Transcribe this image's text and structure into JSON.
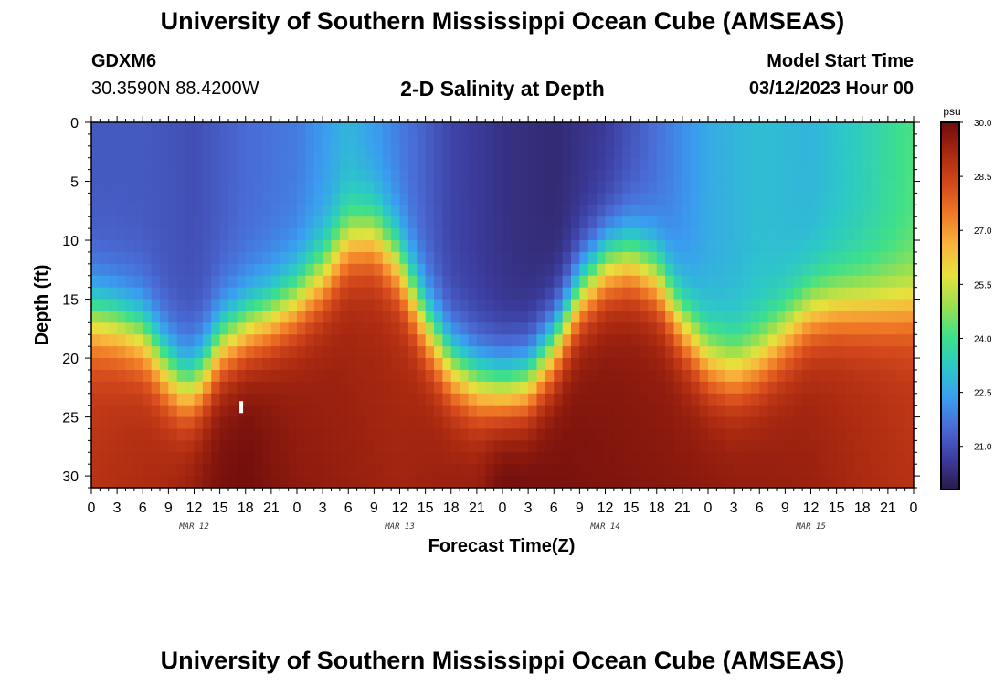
{
  "header": {
    "title": "University of Southern Mississippi Ocean Cube (AMSEAS)",
    "station": "GDXM6",
    "coords": "30.3590N  88.4200W",
    "plot_title": "2-D Salinity at Depth",
    "model_start_label": "Model Start Time",
    "model_start_value": "03/12/2023 Hour 00"
  },
  "footer": {
    "title": "University of Southern Mississippi Ocean Cube (AMSEAS)"
  },
  "colors": {
    "colormap": [
      "#2a1a4a",
      "#3c3c9e",
      "#4a6ad4",
      "#3a9ef0",
      "#2cc8c8",
      "#3ee08a",
      "#9ae050",
      "#e6e23c",
      "#f8b43c",
      "#f07a26",
      "#d4481c",
      "#a82810",
      "#6e0c0c"
    ]
  },
  "chart_data": {
    "type": "heatmap",
    "variable": "salinity",
    "units": "psu",
    "xlabel": "Forecast Time(Z)",
    "ylabel": "Depth (ft)",
    "x_range_hours": [
      0,
      96
    ],
    "ylim": [
      0,
      31
    ],
    "y_inverted": true,
    "x_tick_labels": [
      "0",
      "3",
      "6",
      "9",
      "12",
      "15",
      "18",
      "21",
      "0",
      "3",
      "6",
      "9",
      "12",
      "15",
      "18",
      "21",
      "0",
      "3",
      "6",
      "9",
      "12",
      "15",
      "18",
      "21",
      "0",
      "3",
      "6",
      "9",
      "12",
      "15",
      "18",
      "21",
      "0"
    ],
    "y_ticks": [
      0,
      5,
      10,
      15,
      20,
      25,
      30
    ],
    "date_labels": [
      {
        "hour": 12,
        "label": "MAR 12"
      },
      {
        "hour": 36,
        "label": "MAR 13"
      },
      {
        "hour": 60,
        "label": "MAR 14"
      },
      {
        "hour": 84,
        "label": "MAR 15"
      }
    ],
    "colorbar": {
      "label": "psu",
      "range": [
        19.8,
        30.0
      ],
      "tick_labels": [
        "30.0",
        "28.5",
        "27.0",
        "25.5",
        "24.0",
        "22.5",
        "21.0"
      ]
    },
    "halocline_depth_ft": {
      "hours": [
        0,
        3,
        6,
        9,
        11,
        13,
        15,
        18,
        21,
        24,
        27,
        30,
        33,
        36,
        39,
        42,
        45,
        48,
        51,
        54,
        57,
        60,
        63,
        66,
        69,
        72,
        75,
        78,
        81,
        84,
        87,
        90,
        93,
        96
      ],
      "values": [
        16.5,
        17,
        18,
        21,
        22.5,
        21.5,
        19,
        17.5,
        16.5,
        15,
        13,
        10,
        9.5,
        12,
        17,
        20.5,
        22,
        22.5,
        22,
        19,
        14.5,
        12,
        11.5,
        13,
        17,
        20,
        21,
        20,
        18,
        16,
        15.5,
        15.5,
        15.5,
        15.5
      ]
    },
    "surface_salinity_psu": {
      "hours": [
        0,
        6,
        12,
        18,
        24,
        30,
        36,
        42,
        48,
        54,
        60,
        66,
        72,
        78,
        84,
        90,
        96
      ],
      "values": [
        21.2,
        21.2,
        21.0,
        21.5,
        21.8,
        22.8,
        21.8,
        20.8,
        20.4,
        20.2,
        20.6,
        21.6,
        22.6,
        23.0,
        22.8,
        23.4,
        24.2
      ]
    },
    "deep_salinity_psu": {
      "hours": [
        0,
        9,
        15,
        18,
        24,
        36,
        45,
        48,
        54,
        60,
        72,
        84,
        96
      ],
      "values": [
        28.5,
        28.8,
        29.5,
        29.6,
        29.2,
        28.9,
        29.1,
        29.7,
        29.5,
        29.4,
        29.2,
        29.0,
        28.5
      ]
    },
    "marker": {
      "hour": 17.5,
      "depth_ft": 24.2
    }
  }
}
